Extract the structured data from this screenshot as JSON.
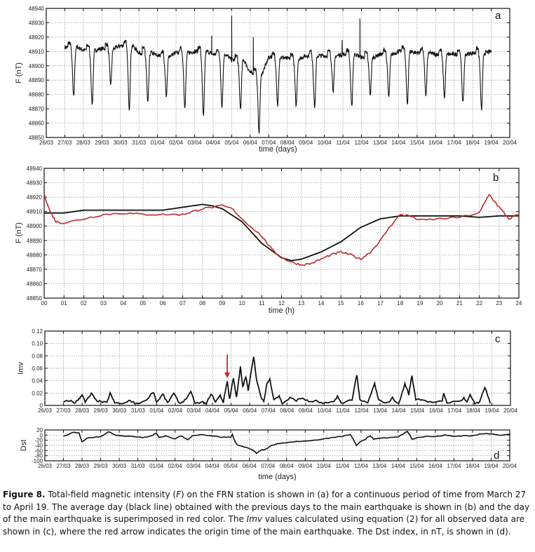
{
  "colors": {
    "black_series": "#111111",
    "red_series": "#c0282d",
    "grid": "#777777"
  },
  "chart_data": [
    {
      "id": "a",
      "type": "line",
      "panel_label": "a",
      "ylabel": "F (nT)",
      "xlabel": "time (days)",
      "ylim": [
        48850,
        48940
      ],
      "yticks": [
        48850,
        48860,
        48870,
        48880,
        48890,
        48900,
        48910,
        48920,
        48930,
        48940
      ],
      "xticks": [
        "26/03",
        "27/03",
        "28/03",
        "29/03",
        "30/03",
        "31/03",
        "01/04",
        "02/04",
        "03/04",
        "04/04",
        "05/04",
        "06/04",
        "07/04",
        "08/04",
        "09/04",
        "10/04",
        "11/04",
        "12/04",
        "13/04",
        "14/04",
        "15/04",
        "16/04",
        "17/04",
        "18/04",
        "19/04",
        "20/04"
      ],
      "grid": true,
      "daily": [
        {
          "date": "27/03",
          "night_level": 48913,
          "min": 48878
        },
        {
          "date": "28/03",
          "night_level": 48911,
          "min": 48873
        },
        {
          "date": "29/03",
          "night_level": 48912,
          "min": 48887
        },
        {
          "date": "30/03",
          "night_level": 48914,
          "min": 48870
        },
        {
          "date": "31/03",
          "night_level": 48909,
          "min": 48874
        },
        {
          "date": "01/04",
          "night_level": 48907,
          "min": 48879
        },
        {
          "date": "02/04",
          "night_level": 48909,
          "min": 48871
        },
        {
          "date": "03/04",
          "night_level": 48910,
          "min": 48864
        },
        {
          "date": "04/04",
          "night_level": 48908,
          "min": 48872
        },
        {
          "date": "05/04",
          "night_level": 48904,
          "min": 48870
        },
        {
          "date": "06/04",
          "night_level": 48895,
          "min": 48854
        },
        {
          "date": "07/04",
          "night_level": 48906,
          "min": 48872
        },
        {
          "date": "08/04",
          "night_level": 48905,
          "min": 48872
        },
        {
          "date": "09/04",
          "night_level": 48907,
          "min": 48871
        },
        {
          "date": "10/04",
          "night_level": 48907,
          "min": 48883
        },
        {
          "date": "11/04",
          "night_level": 48908,
          "min": 48871
        },
        {
          "date": "12/04",
          "night_level": 48906,
          "min": 48880
        },
        {
          "date": "13/04",
          "night_level": 48908,
          "min": 48878
        },
        {
          "date": "14/04",
          "night_level": 48910,
          "min": 48873
        },
        {
          "date": "15/04",
          "night_level": 48909,
          "min": 48879
        },
        {
          "date": "16/04",
          "night_level": 48908,
          "min": 48878
        },
        {
          "date": "17/04",
          "night_level": 48908,
          "min": 48874
        },
        {
          "date": "18/04",
          "night_level": 48909,
          "min": 48869
        },
        {
          "date": "19/04",
          "night_level": 48910,
          "min": 48910
        }
      ],
      "spikes": [
        [
          "03/04 22",
          48921
        ],
        [
          "05/04 00",
          48935
        ],
        [
          "06/04 04",
          48920
        ],
        [
          "11/04 22",
          48933
        ],
        [
          "10/04 23",
          48918
        ]
      ]
    },
    {
      "id": "b",
      "type": "line",
      "panel_label": "b",
      "ylabel": "F (nT)",
      "xlabel": "time (h)",
      "xlim": [
        0,
        24
      ],
      "ylim": [
        48850,
        48940
      ],
      "yticks": [
        48850,
        48860,
        48870,
        48880,
        48890,
        48900,
        48910,
        48920,
        48930,
        48940
      ],
      "xticks": [
        "00",
        "01",
        "02",
        "03",
        "04",
        "05",
        "06",
        "07",
        "08",
        "09",
        "10",
        "11",
        "12",
        "13",
        "14",
        "15",
        "16",
        "17",
        "18",
        "19",
        "20",
        "21",
        "22",
        "23",
        "24"
      ],
      "grid": true,
      "series": [
        {
          "color_key": "black_series",
          "x": [
            0,
            1,
            2,
            3,
            4,
            5,
            6,
            7,
            8,
            8.5,
            9,
            10,
            11,
            12,
            12.5,
            13,
            14,
            15,
            16,
            17,
            18,
            19,
            20,
            21,
            22,
            23,
            24
          ],
          "y": [
            48909,
            48909,
            48911,
            48911,
            48911,
            48911,
            48911,
            48913,
            48915,
            48914,
            48912,
            48903,
            48888,
            48878,
            48876,
            48877,
            48882,
            48889,
            48899,
            48905,
            48907,
            48907,
            48907,
            48907,
            48906,
            48907,
            48907
          ]
        },
        {
          "color_key": "red_series",
          "x": [
            0,
            0.3,
            0.6,
            1,
            2,
            3,
            4,
            5,
            6,
            7,
            7.5,
            8,
            9,
            9.5,
            10,
            11,
            11.5,
            12,
            12.5,
            13,
            13.5,
            14,
            14.5,
            15,
            15.5,
            16,
            16.5,
            17,
            17.5,
            18,
            18.5,
            19,
            20,
            21,
            22,
            22.5,
            23,
            23.5,
            24
          ],
          "y": [
            48922,
            48910,
            48903,
            48902,
            48905,
            48908,
            48909,
            48908,
            48908,
            48908,
            48910,
            48912,
            48914,
            48912,
            48905,
            48893,
            48884,
            48878,
            48875,
            48873,
            48874,
            48877,
            48880,
            48882,
            48880,
            48877,
            48882,
            48890,
            48900,
            48908,
            48907,
            48904,
            48905,
            48906,
            48909,
            48922,
            48913,
            48905,
            48908
          ]
        }
      ]
    },
    {
      "id": "c",
      "type": "line",
      "panel_label": "c",
      "ylabel": "Imv",
      "xlabel": "",
      "ylim": [
        0,
        0.12
      ],
      "yticks": [
        "0",
        "0.02",
        "0.04",
        "0.06",
        "0.08",
        "0.10",
        "0.12"
      ],
      "xticks": [
        "26/03",
        "27/03",
        "28/03",
        "29/03",
        "30/03",
        "31/03",
        "01/04",
        "02/04",
        "03/04",
        "04/04",
        "05/04",
        "06/04",
        "07/04",
        "08/04",
        "09/04",
        "10/04",
        "11/04",
        "12/04",
        "13/04",
        "14/04",
        "15/04",
        "16/04",
        "17/04",
        "18/04",
        "19/04",
        "20/04"
      ],
      "grid": true,
      "points": [
        [
          "27/03 00",
          0.005
        ],
        [
          "27/03 08",
          0.008
        ],
        [
          "27/03 14",
          0.004
        ],
        [
          "27/03 20",
          0.01
        ],
        [
          "28/03 00",
          0.018
        ],
        [
          "28/03 04",
          0.005
        ],
        [
          "28/03 12",
          0.019
        ],
        [
          "28/03 18",
          0.008
        ],
        [
          "29/03 00",
          0.006
        ],
        [
          "29/03 08",
          0.004
        ],
        [
          "29/03 12",
          0.02
        ],
        [
          "29/03 18",
          0.004
        ],
        [
          "30/03 06",
          0.003
        ],
        [
          "30/03 14",
          0.008
        ],
        [
          "30/03 20",
          0.003
        ],
        [
          "31/03 08",
          0.006
        ],
        [
          "31/03 20",
          0.022
        ],
        [
          "01/04 00",
          0.005
        ],
        [
          "01/04 08",
          0.018
        ],
        [
          "01/04 14",
          0.004
        ],
        [
          "01/04 22",
          0.019
        ],
        [
          "02/04 06",
          0.003
        ],
        [
          "02/04 12",
          0.008
        ],
        [
          "02/04 20",
          0.021
        ],
        [
          "03/04 02",
          0.003
        ],
        [
          "03/04 12",
          0.005
        ],
        [
          "03/04 16",
          0.002
        ],
        [
          "03/04 22",
          0.019
        ],
        [
          "04/04 04",
          0.006
        ],
        [
          "04/04 10",
          0.016
        ],
        [
          "04/04 14",
          0.005
        ],
        [
          "04/04 19",
          0.04
        ],
        [
          "04/04 22",
          0.01
        ],
        [
          "05/04 03",
          0.045
        ],
        [
          "05/04 07",
          0.012
        ],
        [
          "05/04 12",
          0.062
        ],
        [
          "05/04 15",
          0.03
        ],
        [
          "05/04 19",
          0.046
        ],
        [
          "05/04 22",
          0.025
        ],
        [
          "06/04 05",
          0.08
        ],
        [
          "06/04 09",
          0.04
        ],
        [
          "06/04 14",
          0.015
        ],
        [
          "06/04 18",
          0.005
        ],
        [
          "06/04 22",
          0.035
        ],
        [
          "07/04 02",
          0.042
        ],
        [
          "07/04 07",
          0.01
        ],
        [
          "07/04 14",
          0.015
        ],
        [
          "07/04 18",
          0.003
        ],
        [
          "08/04 04",
          0.012
        ],
        [
          "08/04 12",
          0.008
        ],
        [
          "08/04 20",
          0.012
        ],
        [
          "09/04 04",
          0.006
        ],
        [
          "09/04 14",
          0.007
        ],
        [
          "09/04 22",
          0.003
        ],
        [
          "10/04 12",
          0.005
        ],
        [
          "10/04 17",
          0.015
        ],
        [
          "10/04 22",
          0.003
        ],
        [
          "11/04 12",
          0.01
        ],
        [
          "11/04 18",
          0.05
        ],
        [
          "11/04 22",
          0.008
        ],
        [
          "12/04 08",
          0.004
        ],
        [
          "12/04 17",
          0.035
        ],
        [
          "12/04 22",
          0.008
        ],
        [
          "13/04 10",
          0.004
        ],
        [
          "13/04 16",
          0.012
        ],
        [
          "14/04 00",
          0.002
        ],
        [
          "14/04 08",
          0.035
        ],
        [
          "14/04 13",
          0.018
        ],
        [
          "14/04 17",
          0.048
        ],
        [
          "14/04 22",
          0.01
        ],
        [
          "15/04 06",
          0.01
        ],
        [
          "15/04 16",
          0.005
        ],
        [
          "16/04 08",
          0.006
        ],
        [
          "16/04 10",
          0.02
        ],
        [
          "16/04 14",
          0.005
        ],
        [
          "17/04 06",
          0.006
        ],
        [
          "17/04 12",
          0.012
        ],
        [
          "17/04 16",
          0.005
        ],
        [
          "17/04 20",
          0.018
        ],
        [
          "18/04 02",
          0.003
        ],
        [
          "18/04 08",
          0.004
        ],
        [
          "18/04 15",
          0.03
        ],
        [
          "18/04 22",
          0.003
        ]
      ],
      "annotation": {
        "type": "arrow",
        "at": "04/04 19",
        "from_value": 0.082,
        "to_value": 0.044,
        "color_key": "red_series"
      }
    },
    {
      "id": "d",
      "type": "line",
      "panel_label": "d",
      "ylabel": "Dst",
      "xlabel": "time (days)",
      "ylim": [
        -100,
        20
      ],
      "yticks": [
        "-100",
        "-80",
        "-60",
        "-40",
        "-20",
        "0",
        "20"
      ],
      "xticks": [
        "26/03",
        "27/03",
        "28/03",
        "29/03",
        "30/03",
        "31/03",
        "01/04",
        "02/04",
        "03/04",
        "04/04",
        "05/04",
        "06/04",
        "07/04",
        "08/04",
        "09/04",
        "10/04",
        "11/04",
        "12/04",
        "13/04",
        "14/04",
        "15/04",
        "16/04",
        "17/04",
        "18/04",
        "19/04",
        "20/04"
      ],
      "grid": true,
      "points": [
        [
          "27/03 00",
          -5
        ],
        [
          "27/03 12",
          10
        ],
        [
          "27/03 20",
          8
        ],
        [
          "28/03 00",
          -25
        ],
        [
          "28/03 08",
          -10
        ],
        [
          "28/03 16",
          -8
        ],
        [
          "29/03 00",
          -5
        ],
        [
          "29/03 10",
          12
        ],
        [
          "29/03 20",
          0
        ],
        [
          "30/03 06",
          -3
        ],
        [
          "30/03 18",
          -5
        ],
        [
          "31/03 06",
          -10
        ],
        [
          "31/03 18",
          -3
        ],
        [
          "01/04 00",
          8
        ],
        [
          "01/04 03",
          -10
        ],
        [
          "01/04 12",
          -2
        ],
        [
          "02/04 00",
          -15
        ],
        [
          "02/04 08",
          -3
        ],
        [
          "02/04 16",
          -18
        ],
        [
          "03/04 00",
          0
        ],
        [
          "03/04 12",
          2
        ],
        [
          "04/04 00",
          -3
        ],
        [
          "04/04 12",
          -8
        ],
        [
          "05/04 00",
          -8
        ],
        [
          "05/04 02",
          2
        ],
        [
          "05/04 06",
          -30
        ],
        [
          "05/04 10",
          -40
        ],
        [
          "05/04 16",
          -45
        ],
        [
          "05/04 22",
          -50
        ],
        [
          "06/04 06",
          -62
        ],
        [
          "06/04 09",
          -70
        ],
        [
          "06/04 16",
          -58
        ],
        [
          "06/04 22",
          -55
        ],
        [
          "07/04 04",
          -40
        ],
        [
          "07/04 12",
          -35
        ],
        [
          "07/04 20",
          -30
        ],
        [
          "08/04 12",
          -25
        ],
        [
          "09/04 12",
          -20
        ],
        [
          "10/04 00",
          -15
        ],
        [
          "10/04 12",
          -10
        ],
        [
          "11/04 00",
          -5
        ],
        [
          "11/04 10",
          2
        ],
        [
          "11/04 14",
          -15
        ],
        [
          "11/04 18",
          -40
        ],
        [
          "11/04 22",
          -28
        ],
        [
          "12/04 06",
          -15
        ],
        [
          "12/04 12",
          -2
        ],
        [
          "12/04 16",
          -15
        ],
        [
          "13/04 00",
          -12
        ],
        [
          "13/04 12",
          -10
        ],
        [
          "14/04 00",
          -7
        ],
        [
          "14/04 12",
          15
        ],
        [
          "14/04 18",
          -15
        ],
        [
          "15/04 00",
          -10
        ],
        [
          "15/04 12",
          -5
        ],
        [
          "16/04 00",
          -6
        ],
        [
          "16/04 12",
          0
        ],
        [
          "17/04 00",
          -5
        ],
        [
          "17/04 12",
          -2
        ],
        [
          "18/04 00",
          -3
        ],
        [
          "18/04 12",
          5
        ],
        [
          "19/04 00",
          6
        ],
        [
          "19/04 12",
          0
        ],
        [
          "20/04 00",
          3
        ]
      ]
    }
  ],
  "caption": {
    "label": "Figure 8.",
    "segments": [
      {
        "text": " Total-field magnetic intensity (",
        "italic": false
      },
      {
        "text": "F",
        "italic": true
      },
      {
        "text": ") on the FRN station is shown in (a) for a continuous period of time from March 27 to April 19. The average day (black line) obtained with the previous days to the main earthquake is shown in (b) and the day of the main earthquake is superimposed in red color. The ",
        "italic": false
      },
      {
        "text": "Imv",
        "italic": true
      },
      {
        "text": " values calculated using equation (2) for all observed data are shown in (c), where the red arrow indicates the origin time of the main earthquake. The Dst index, in nT, is shown in (d).",
        "italic": false
      }
    ]
  }
}
